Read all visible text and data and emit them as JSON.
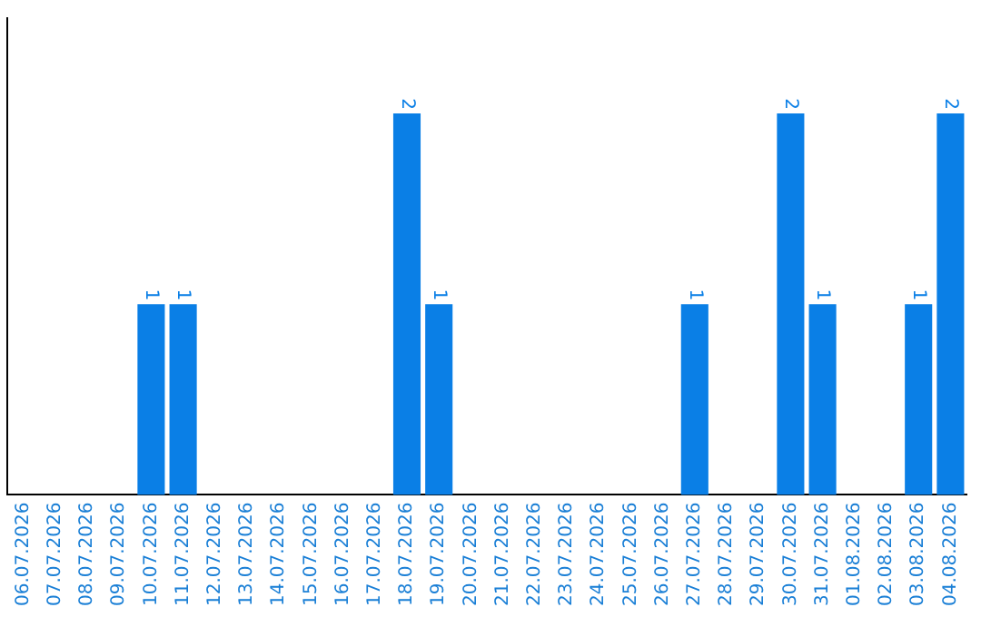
{
  "chart_data": {
    "type": "bar",
    "categories": [
      "06.07.2026",
      "07.07.2026",
      "08.07.2026",
      "09.07.2026",
      "10.07.2026",
      "11.07.2026",
      "12.07.2026",
      "13.07.2026",
      "14.07.2026",
      "15.07.2026",
      "16.07.2026",
      "17.07.2026",
      "18.07.2026",
      "19.07.2026",
      "20.07.2026",
      "21.07.2026",
      "22.07.2026",
      "23.07.2026",
      "24.07.2026",
      "25.07.2026",
      "26.07.2026",
      "27.07.2026",
      "28.07.2026",
      "29.07.2026",
      "30.07.2026",
      "31.07.2026",
      "01.08.2026",
      "02.08.2026",
      "03.08.2026",
      "04.08.2026"
    ],
    "values": [
      0,
      0,
      0,
      0,
      1,
      1,
      0,
      0,
      0,
      0,
      0,
      0,
      2,
      1,
      0,
      0,
      0,
      0,
      0,
      0,
      0,
      1,
      0,
      0,
      2,
      1,
      0,
      0,
      1,
      2
    ],
    "value_labels": [
      null,
      null,
      null,
      null,
      "1",
      "1",
      null,
      null,
      null,
      null,
      null,
      null,
      "2",
      "1",
      null,
      null,
      null,
      null,
      null,
      null,
      null,
      "1",
      null,
      null,
      "2",
      "1",
      null,
      null,
      "1",
      "2"
    ],
    "color": "#0a7fe6",
    "tick_labels": "x",
    "grid": false,
    "legend": false
  }
}
